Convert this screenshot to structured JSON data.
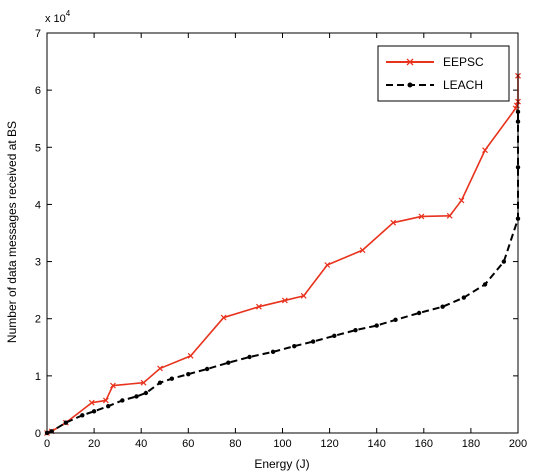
{
  "chart_data": {
    "type": "line",
    "xlabel": "Energy (J)",
    "ylabel": "Number of data messages received at BS",
    "y_multiplier": "x 10",
    "y_multiplier_exp": "4",
    "xlim": [
      0,
      200
    ],
    "ylim": [
      0,
      7
    ],
    "xticks": [
      0,
      20,
      40,
      60,
      80,
      100,
      120,
      140,
      160,
      180,
      200
    ],
    "yticks": [
      0,
      1,
      2,
      3,
      4,
      5,
      6,
      7
    ],
    "grid": false,
    "legend_position": "top-right",
    "series": [
      {
        "name": "EEPSC",
        "color": "#e8321c",
        "line_style": "solid",
        "marker": "x",
        "x": [
          0,
          2,
          8,
          19,
          25,
          28,
          41,
          48,
          61,
          75,
          90,
          101,
          109,
          119,
          134,
          147,
          159,
          171,
          176,
          186,
          199,
          199.5,
          200,
          200
        ],
        "y": [
          0,
          0.03,
          0.18,
          0.53,
          0.57,
          0.83,
          0.88,
          1.13,
          1.35,
          2.02,
          2.21,
          2.32,
          2.4,
          2.94,
          3.2,
          3.68,
          3.79,
          3.8,
          4.07,
          4.95,
          5.68,
          5.73,
          5.8,
          6.25
        ]
      },
      {
        "name": "LEACH",
        "color": "#000000",
        "line_style": "dashed",
        "marker": "dot",
        "x": [
          0,
          2,
          8,
          15,
          20,
          26,
          32,
          38,
          42,
          48,
          53,
          60,
          68,
          77,
          86,
          96,
          105,
          113,
          122,
          131,
          140,
          148,
          158,
          168,
          177,
          186,
          194,
          200,
          200,
          200,
          200
        ],
        "y": [
          0,
          0.03,
          0.18,
          0.31,
          0.38,
          0.47,
          0.57,
          0.64,
          0.7,
          0.88,
          0.95,
          1.03,
          1.12,
          1.23,
          1.33,
          1.42,
          1.52,
          1.6,
          1.7,
          1.8,
          1.88,
          1.98,
          2.1,
          2.21,
          2.37,
          2.6,
          3.0,
          3.75,
          4.65,
          5.45,
          5.62
        ]
      }
    ]
  }
}
